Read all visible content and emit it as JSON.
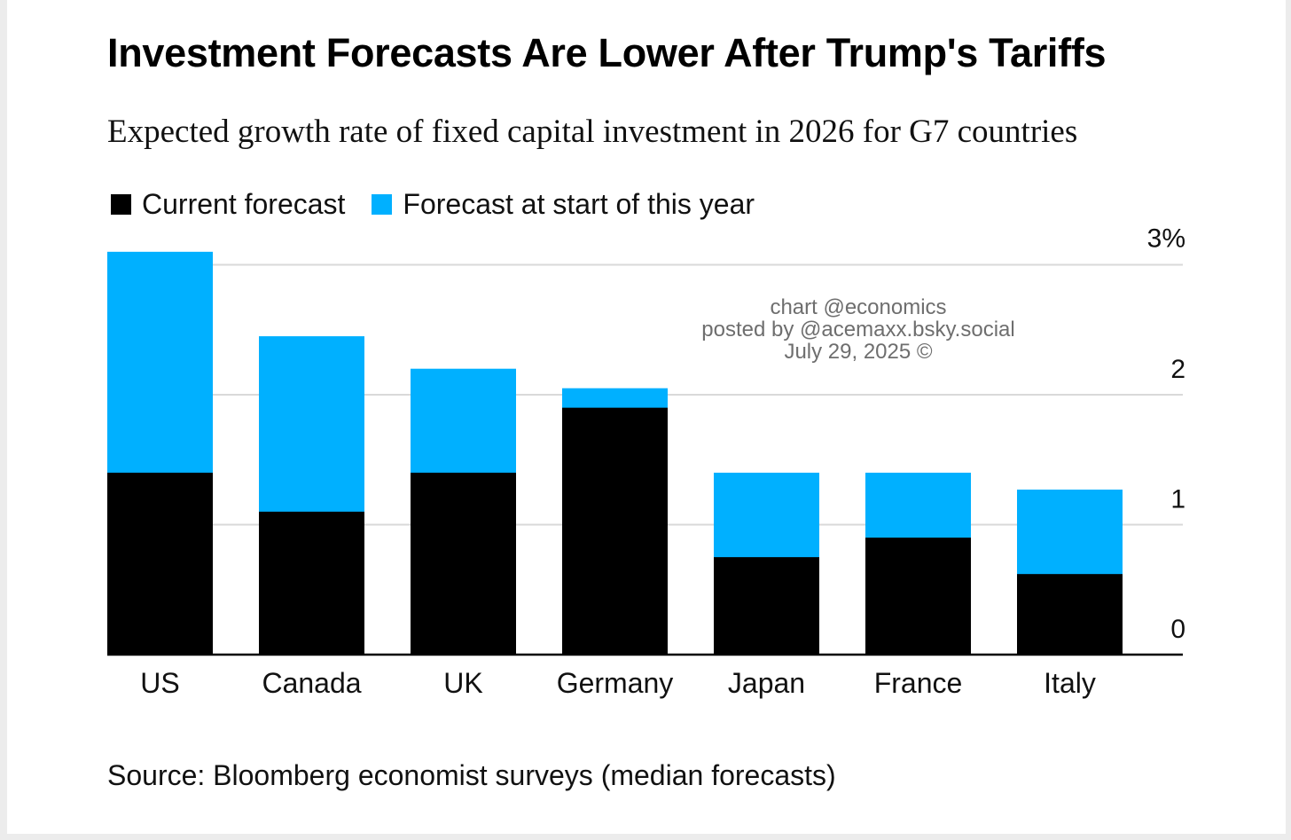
{
  "title": "Investment Forecasts Are Lower After Trump's Tariffs",
  "subtitle": "Expected growth rate of fixed capital investment in 2026 for G7 countries",
  "source": "Source: Bloomberg economist surveys (median forecasts)",
  "watermark": {
    "line1": "chart @economics",
    "line2": "posted by @acemaxx.bsky.social",
    "line3": "July 29, 2025 ©"
  },
  "colors": {
    "current": "#000000",
    "start": "#00b0ff",
    "grid": "#d9d9d9",
    "axis": "#000000"
  },
  "chart_data": {
    "type": "bar",
    "categories": [
      "US",
      "Canada",
      "UK",
      "Germany",
      "Japan",
      "France",
      "Italy"
    ],
    "series": [
      {
        "name": "Current forecast",
        "values": [
          1.4,
          1.1,
          1.4,
          1.9,
          0.75,
          0.9,
          0.62
        ]
      },
      {
        "name": "Forecast at start of this year",
        "values": [
          3.1,
          2.45,
          2.2,
          2.05,
          1.4,
          1.4,
          1.27
        ]
      }
    ],
    "y_ticks": [
      {
        "value": 0,
        "label": "0"
      },
      {
        "value": 1,
        "label": "1"
      },
      {
        "value": 2,
        "label": "2"
      },
      {
        "value": 3,
        "label": "3%"
      }
    ],
    "ylim": [
      0,
      3
    ],
    "grid": true,
    "legend_position": "top-left",
    "xlabel": "",
    "ylabel": ""
  }
}
